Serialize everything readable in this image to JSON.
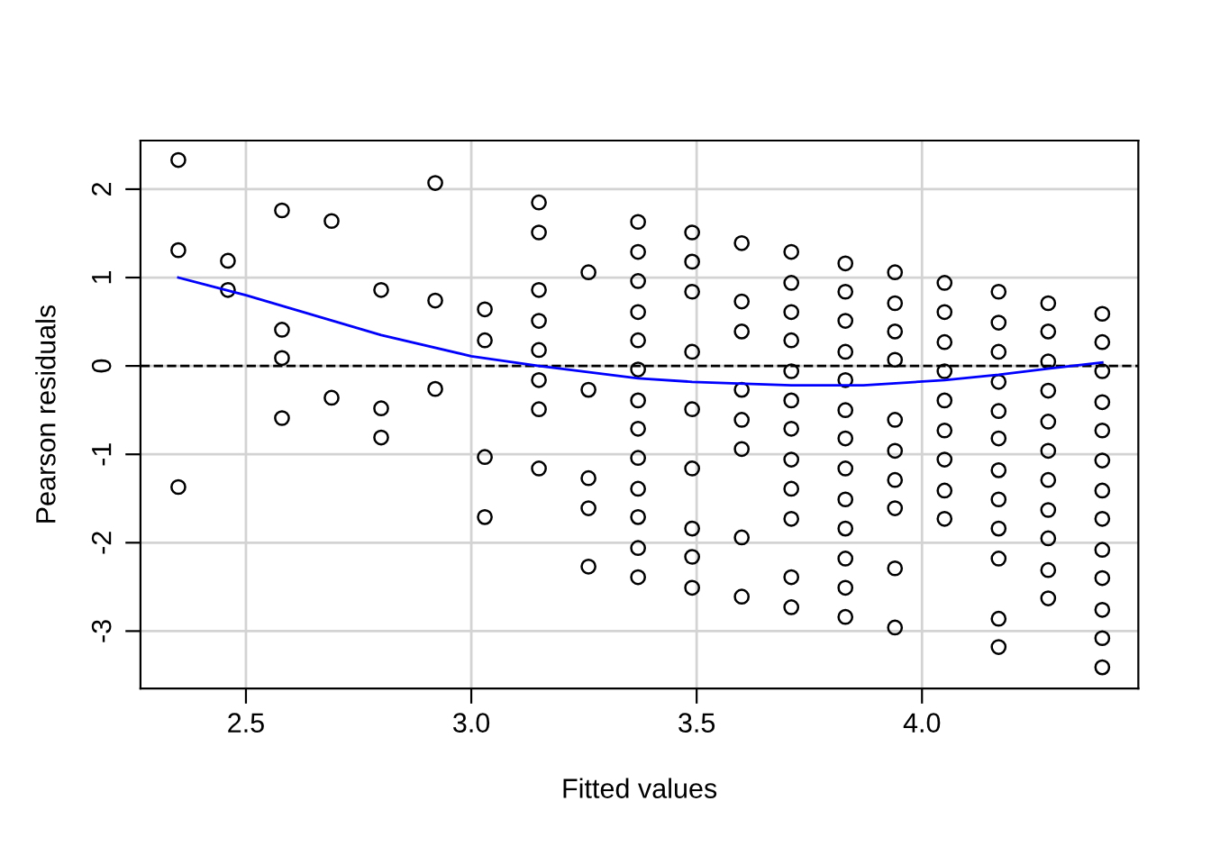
{
  "chart_data": {
    "type": "scatter",
    "xlabel": "Fitted values",
    "ylabel": "Pearson residuals",
    "xlim": [
      2.266,
      4.48
    ],
    "ylim": [
      -3.65,
      2.55
    ],
    "xticks": [
      {
        "value": 2.5,
        "label": "2.5"
      },
      {
        "value": 3.0,
        "label": "3.0"
      },
      {
        "value": 3.5,
        "label": "3.5"
      },
      {
        "value": 4.0,
        "label": "4.0"
      }
    ],
    "yticks": [
      -3,
      -2,
      -1,
      0,
      1,
      2
    ],
    "grid": true,
    "marker": "circle",
    "ref_lines": [
      {
        "axis": "y",
        "value": 0,
        "label": null,
        "color": "#000000",
        "line_style": "dashed"
      }
    ],
    "series": [
      {
        "color": "#000000",
        "x": [
          2.35,
          2.35,
          2.35,
          2.46,
          2.46,
          2.58,
          2.58,
          2.58,
          2.58,
          2.69,
          2.69,
          2.8,
          2.8,
          2.8,
          2.92,
          2.92,
          2.92,
          3.03,
          3.03,
          3.03,
          3.03,
          3.15,
          3.15,
          3.15,
          3.15,
          3.15,
          3.15,
          3.15,
          3.15,
          3.26,
          3.26,
          3.26,
          3.26,
          3.26,
          3.37,
          3.37,
          3.37,
          3.37,
          3.37,
          3.37,
          3.37,
          3.37,
          3.37,
          3.37,
          3.37,
          3.37,
          3.37,
          3.49,
          3.49,
          3.49,
          3.49,
          3.49,
          3.49,
          3.49,
          3.49,
          3.49,
          3.6,
          3.6,
          3.6,
          3.6,
          3.6,
          3.6,
          3.6,
          3.6,
          3.71,
          3.71,
          3.71,
          3.71,
          3.71,
          3.71,
          3.71,
          3.71,
          3.71,
          3.71,
          3.71,
          3.71,
          3.83,
          3.83,
          3.83,
          3.83,
          3.83,
          3.83,
          3.83,
          3.83,
          3.83,
          3.83,
          3.83,
          3.83,
          3.83,
          3.94,
          3.94,
          3.94,
          3.94,
          3.94,
          3.94,
          3.94,
          3.94,
          3.94,
          3.94,
          4.05,
          4.05,
          4.05,
          4.05,
          4.05,
          4.05,
          4.05,
          4.05,
          4.05,
          4.17,
          4.17,
          4.17,
          4.17,
          4.17,
          4.17,
          4.17,
          4.17,
          4.17,
          4.17,
          4.17,
          4.17,
          4.28,
          4.28,
          4.28,
          4.28,
          4.28,
          4.28,
          4.28,
          4.28,
          4.28,
          4.28,
          4.28,
          4.4,
          4.4,
          4.4,
          4.4,
          4.4,
          4.4,
          4.4,
          4.4,
          4.4,
          4.4,
          4.4,
          4.4,
          4.4
        ],
        "values": [
          2.33,
          1.31,
          -1.37,
          1.19,
          0.86,
          1.76,
          0.41,
          0.09,
          -0.59,
          1.64,
          -0.36,
          0.86,
          -0.48,
          -0.81,
          2.07,
          0.74,
          -0.26,
          0.64,
          0.29,
          -1.03,
          -1.71,
          1.85,
          1.51,
          0.86,
          0.51,
          0.18,
          -0.16,
          -0.49,
          -1.16,
          1.06,
          -0.27,
          -1.27,
          -1.61,
          -2.27,
          1.63,
          1.29,
          0.96,
          0.61,
          0.29,
          -0.04,
          -0.39,
          -0.71,
          -1.04,
          -1.39,
          -1.71,
          -2.06,
          -2.39,
          1.51,
          1.18,
          0.84,
          0.16,
          -0.49,
          -1.16,
          -1.84,
          -2.16,
          -2.51,
          1.39,
          0.73,
          0.39,
          -0.27,
          -0.61,
          -0.94,
          -1.94,
          -2.61,
          1.29,
          0.94,
          0.61,
          0.29,
          -0.06,
          -0.39,
          -0.71,
          -1.06,
          -1.39,
          -1.73,
          -2.39,
          -2.73,
          1.16,
          0.84,
          0.51,
          0.16,
          -0.16,
          -0.5,
          -0.82,
          -1.16,
          -1.51,
          -1.84,
          -2.18,
          -2.51,
          -2.84,
          1.06,
          0.71,
          0.39,
          0.07,
          -0.61,
          -0.96,
          -1.29,
          -1.61,
          -2.29,
          -2.96,
          0.94,
          0.61,
          0.27,
          -0.06,
          -0.39,
          -0.73,
          -1.06,
          -1.41,
          -1.73,
          0.84,
          0.49,
          0.16,
          -0.18,
          -0.51,
          -0.82,
          -1.18,
          -1.51,
          -1.84,
          -2.18,
          -2.86,
          -3.18,
          0.71,
          0.39,
          0.05,
          -0.28,
          -0.63,
          -0.96,
          -1.29,
          -1.63,
          -1.95,
          -2.31,
          -2.63,
          0.59,
          0.27,
          -0.06,
          -0.41,
          -0.73,
          -1.07,
          -1.41,
          -1.73,
          -2.08,
          -2.4,
          -2.76,
          -3.08,
          -3.41
        ]
      },
      {
        "type": "line",
        "color": "#0000ff",
        "marker": "none",
        "line_style": "solid",
        "x": [
          2.35,
          2.5,
          2.8,
          3.0,
          3.15,
          3.37,
          3.49,
          3.71,
          3.87,
          4.05,
          4.17,
          4.28,
          4.4
        ],
        "values": [
          1.0,
          0.8,
          0.35,
          0.11,
          0.0,
          -0.14,
          -0.18,
          -0.22,
          -0.22,
          -0.16,
          -0.1,
          -0.03,
          0.04
        ]
      }
    ]
  }
}
